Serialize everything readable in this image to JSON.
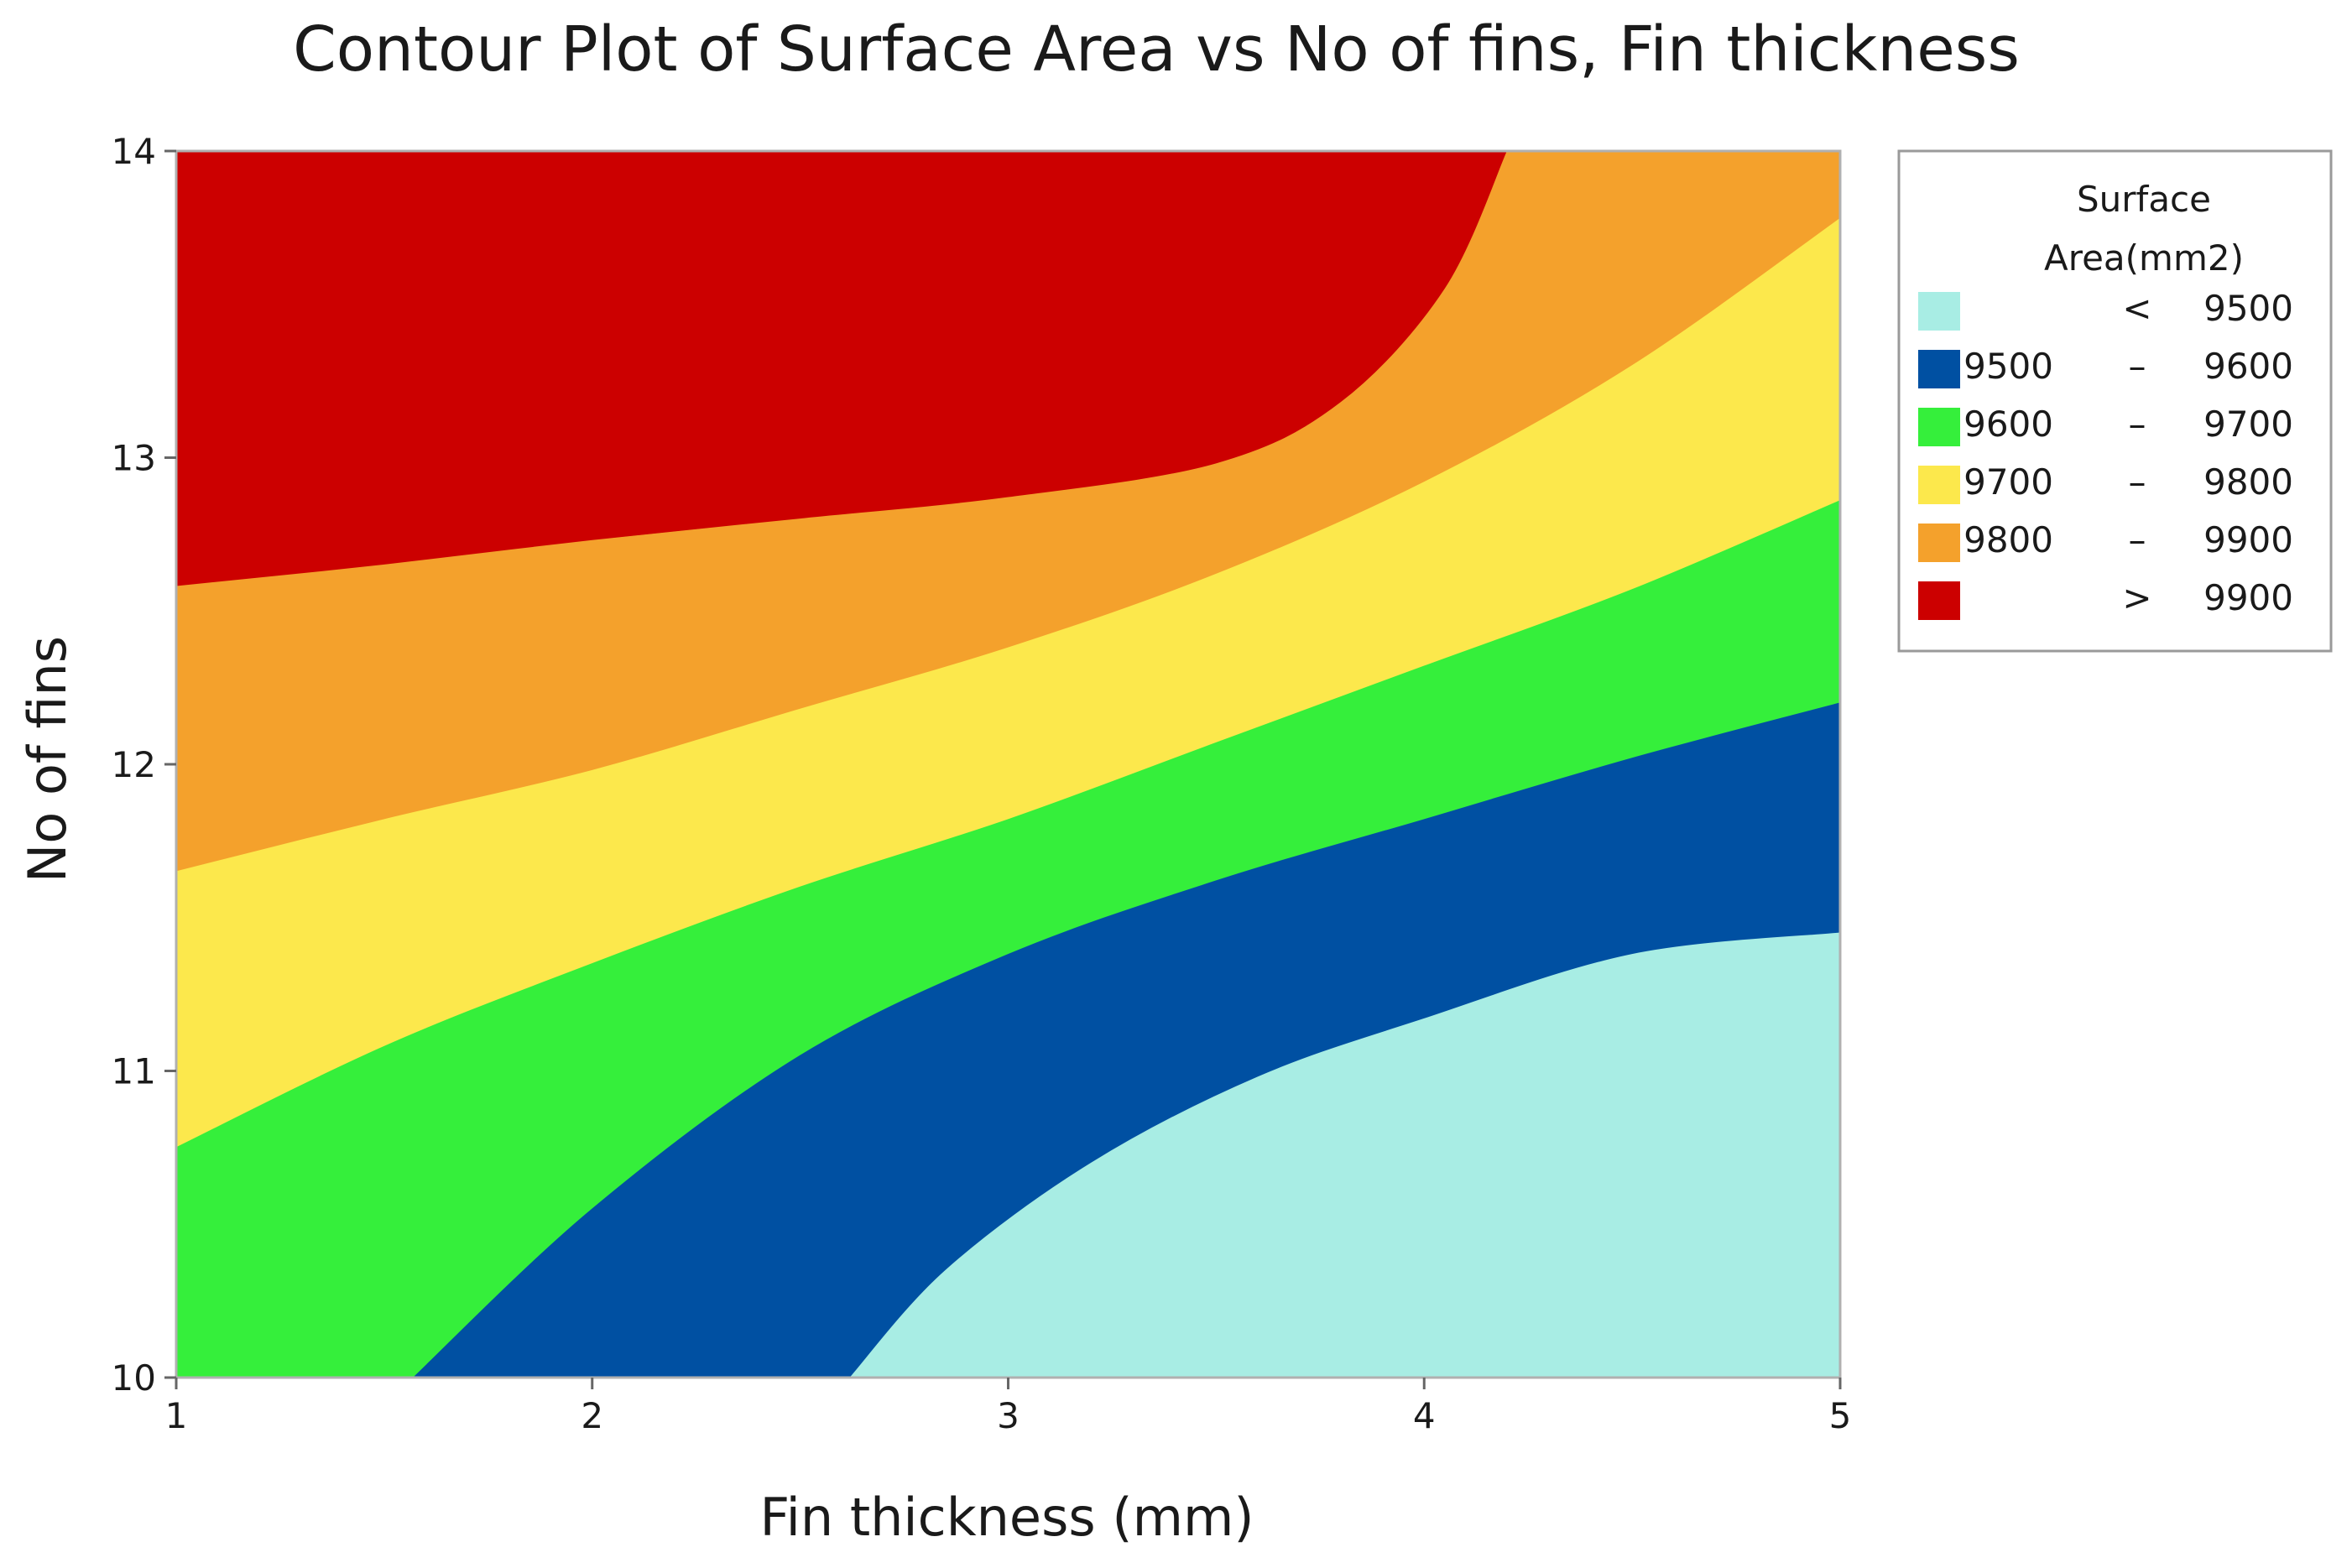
{
  "chart_data": {
    "type": "contour",
    "title": "Contour Plot of Surface Area vs No of fins, Fin thickness",
    "xlabel": "Fin thickness (mm)",
    "ylabel": "No of fins",
    "xlim": [
      1,
      5
    ],
    "ylim": [
      10,
      14
    ],
    "x_ticks": [
      "1",
      "2",
      "3",
      "4",
      "5"
    ],
    "y_ticks": [
      "10",
      "11",
      "12",
      "13",
      "14"
    ],
    "legend": {
      "title_lines": [
        "Surface",
        "Area(mm2)"
      ],
      "placement": "right",
      "entries": [
        {
          "low": "",
          "sep": "<",
          "high": "9500",
          "color": "#a8ede4"
        },
        {
          "low": "9500",
          "sep": "–",
          "high": "9600",
          "color": "#0050a2"
        },
        {
          "low": "9600",
          "sep": "–",
          "high": "9700",
          "color": "#35ef3b"
        },
        {
          "low": "9700",
          "sep": "–",
          "high": "9800",
          "color": "#fce84c"
        },
        {
          "low": "9800",
          "sep": "–",
          "high": "9900",
          "color": "#f4a12c"
        },
        {
          "low": "",
          "sep": ">",
          "high": "9900",
          "color": "#cc0000"
        }
      ]
    },
    "contour_levels": [
      9500,
      9600,
      9700,
      9800,
      9900
    ],
    "contour_lines": [
      {
        "level": 9500,
        "points": [
          [
            2.62,
            10.0
          ],
          [
            2.85,
            10.35
          ],
          [
            3.2,
            10.7
          ],
          [
            3.6,
            10.98
          ],
          [
            4.0,
            11.17
          ],
          [
            4.5,
            11.38
          ],
          [
            5.0,
            11.45
          ]
        ]
      },
      {
        "level": 9600,
        "points": [
          [
            1.57,
            10.0
          ],
          [
            2.0,
            10.55
          ],
          [
            2.5,
            11.05
          ],
          [
            3.0,
            11.38
          ],
          [
            3.5,
            11.62
          ],
          [
            4.0,
            11.82
          ],
          [
            4.5,
            12.02
          ],
          [
            5.0,
            12.2
          ]
        ]
      },
      {
        "level": 9700,
        "points": [
          [
            1.0,
            10.75
          ],
          [
            1.5,
            11.08
          ],
          [
            2.0,
            11.35
          ],
          [
            2.5,
            11.6
          ],
          [
            3.0,
            11.82
          ],
          [
            3.5,
            12.07
          ],
          [
            4.0,
            12.32
          ],
          [
            4.5,
            12.57
          ],
          [
            5.0,
            12.86
          ]
        ]
      },
      {
        "level": 9800,
        "points": [
          [
            1.0,
            11.65
          ],
          [
            1.5,
            11.82
          ],
          [
            2.0,
            11.98
          ],
          [
            2.5,
            12.18
          ],
          [
            3.0,
            12.38
          ],
          [
            3.5,
            12.62
          ],
          [
            4.0,
            12.92
          ],
          [
            4.5,
            13.3
          ],
          [
            5.0,
            13.78
          ]
        ]
      },
      {
        "level": 9900,
        "points": [
          [
            1.0,
            12.58
          ],
          [
            1.5,
            12.65
          ],
          [
            2.0,
            12.73
          ],
          [
            2.5,
            12.8
          ],
          [
            3.0,
            12.87
          ],
          [
            3.5,
            12.98
          ],
          [
            3.8,
            13.18
          ],
          [
            4.05,
            13.55
          ],
          [
            4.2,
            14.0
          ]
        ]
      }
    ],
    "grid": false
  }
}
